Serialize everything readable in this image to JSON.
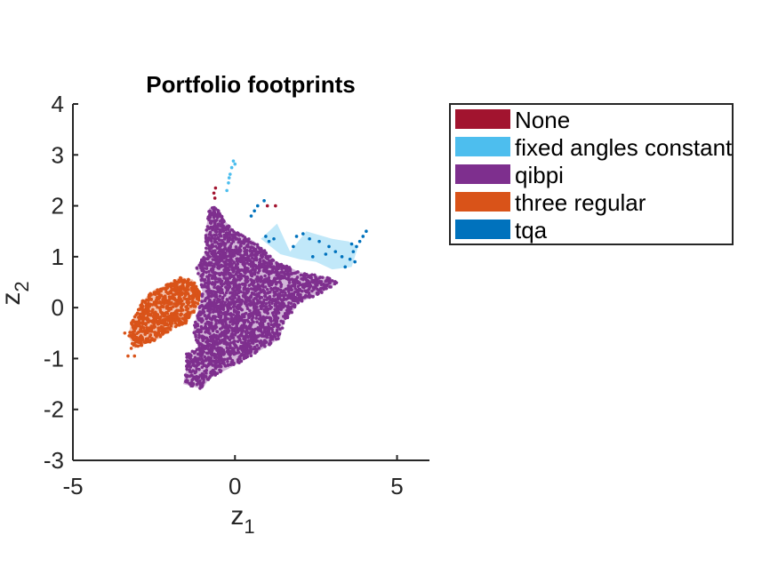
{
  "chart_data": {
    "type": "scatter",
    "title": "Portfolio footprints",
    "xlabel_main": "z",
    "xlabel_sub": "1",
    "ylabel_main": "z",
    "ylabel_sub": "2",
    "xlim": [
      -5,
      6
    ],
    "ylim": [
      -3,
      4
    ],
    "xticks": [
      -5,
      0,
      5
    ],
    "xtick_labels": [
      "-5",
      "0",
      "5"
    ],
    "yticks": [
      -3,
      -2,
      -1,
      0,
      1,
      2,
      3,
      4
    ],
    "ytick_labels": [
      "-3",
      "-2",
      "-1",
      "0",
      "1",
      "2",
      "3",
      "4"
    ],
    "grid": false,
    "legend_placement": "outside-right",
    "series": [
      {
        "name": "None",
        "color": "#a2142f",
        "footprint_polygon": [],
        "points": [
          [
            -0.65,
            2.25
          ],
          [
            -0.62,
            2.15
          ],
          [
            -0.6,
            2.35
          ],
          [
            1.0,
            2.0
          ],
          [
            1.25,
            2.0
          ]
        ]
      },
      {
        "name": "fixed angles constant",
        "color": "#4dbeee",
        "footprint_polygon": [
          [
            0.8,
            1.35
          ],
          [
            1.3,
            1.65
          ],
          [
            1.7,
            1.1
          ],
          [
            2.2,
            1.5
          ],
          [
            3.0,
            1.35
          ],
          [
            3.5,
            1.3
          ],
          [
            3.8,
            1.2
          ],
          [
            3.6,
            0.8
          ],
          [
            3.0,
            0.75
          ],
          [
            2.5,
            0.9
          ],
          [
            2.0,
            0.95
          ],
          [
            1.4,
            1.05
          ]
        ],
        "points": [
          [
            -0.2,
            2.45
          ],
          [
            -0.15,
            2.62
          ],
          [
            -0.1,
            2.75
          ],
          [
            -0.05,
            2.88
          ],
          [
            0.0,
            2.82
          ],
          [
            -0.25,
            2.3
          ],
          [
            -0.18,
            2.55
          ]
        ]
      },
      {
        "name": "qibpi",
        "color": "#7e2f8e",
        "footprint_polygon": [
          [
            -0.8,
            1.95
          ],
          [
            -0.6,
            2.0
          ],
          [
            -0.3,
            1.7
          ],
          [
            0.0,
            1.5
          ],
          [
            0.6,
            1.3
          ],
          [
            1.3,
            0.9
          ],
          [
            2.0,
            0.7
          ],
          [
            2.8,
            0.6
          ],
          [
            3.2,
            0.5
          ],
          [
            2.7,
            0.3
          ],
          [
            2.0,
            0.1
          ],
          [
            1.5,
            -0.3
          ],
          [
            1.4,
            -0.6
          ],
          [
            0.5,
            -0.95
          ],
          [
            -0.2,
            -1.2
          ],
          [
            -0.8,
            -1.4
          ],
          [
            -1.0,
            -1.6
          ],
          [
            -1.6,
            -1.5
          ],
          [
            -1.5,
            -1.2
          ],
          [
            -1.5,
            -0.9
          ],
          [
            -1.1,
            -0.8
          ],
          [
            -1.3,
            -0.5
          ],
          [
            -1.2,
            -0.2
          ],
          [
            -1.0,
            0.3
          ],
          [
            -1.2,
            0.8
          ],
          [
            -0.9,
            1.1
          ],
          [
            -0.9,
            1.5
          ]
        ],
        "points": []
      },
      {
        "name": "three regular",
        "color": "#d95319",
        "footprint_polygon": [
          [
            -1.3,
            0.55
          ],
          [
            -1.7,
            0.6
          ],
          [
            -2.1,
            0.45
          ],
          [
            -2.5,
            0.35
          ],
          [
            -2.9,
            0.1
          ],
          [
            -3.2,
            -0.3
          ],
          [
            -3.3,
            -0.55
          ],
          [
            -3.1,
            -0.8
          ],
          [
            -2.7,
            -0.7
          ],
          [
            -2.3,
            -0.6
          ],
          [
            -1.9,
            -0.4
          ],
          [
            -1.5,
            -0.3
          ],
          [
            -1.2,
            -0.05
          ],
          [
            -1.05,
            0.25
          ]
        ],
        "points": [
          [
            -3.4,
            -0.5
          ],
          [
            -3.3,
            -0.95
          ],
          [
            -3.1,
            -0.95
          ],
          [
            -3.2,
            -0.8
          ]
        ]
      },
      {
        "name": "tqa",
        "color": "#0072bd",
        "footprint_polygon": [],
        "points": [
          [
            0.5,
            1.8
          ],
          [
            0.6,
            1.9
          ],
          [
            0.7,
            2.0
          ],
          [
            0.9,
            2.1
          ],
          [
            0.95,
            1.4
          ],
          [
            1.05,
            1.3
          ],
          [
            1.2,
            1.35
          ],
          [
            1.9,
            1.4
          ],
          [
            2.1,
            1.45
          ],
          [
            2.3,
            1.35
          ],
          [
            2.6,
            1.3
          ],
          [
            2.9,
            1.2
          ],
          [
            3.1,
            1.1
          ],
          [
            3.3,
            1.0
          ],
          [
            3.4,
            0.8
          ],
          [
            3.55,
            0.95
          ],
          [
            3.65,
            1.1
          ],
          [
            3.75,
            1.2
          ],
          [
            3.85,
            1.3
          ],
          [
            3.95,
            1.4
          ],
          [
            4.05,
            1.5
          ],
          [
            3.7,
            0.9
          ],
          [
            3.6,
            1.25
          ],
          [
            2.8,
            1.05
          ],
          [
            2.4,
            1.0
          ],
          [
            1.8,
            1.2
          ]
        ]
      }
    ]
  }
}
